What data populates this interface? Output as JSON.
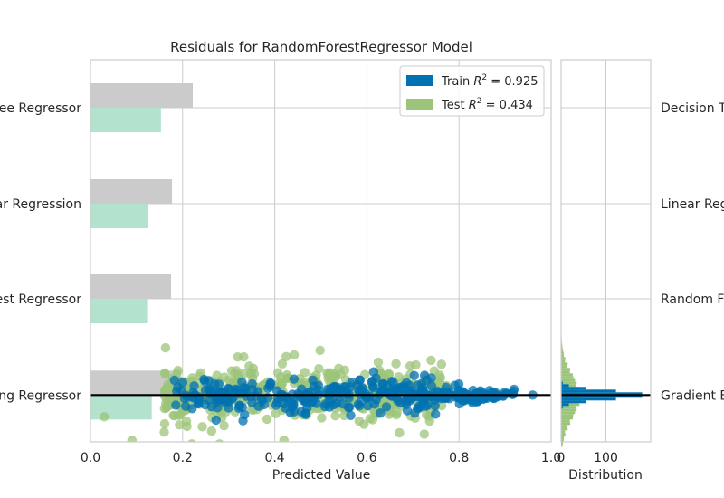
{
  "chart_data": {
    "type": "scatter",
    "title": "Residuals for RandomForestRegressor Model",
    "xlabel": "Predicted Value",
    "ylabel": "",
    "xlim": [
      0.0,
      1.0
    ],
    "x_ticks": [
      "0.0",
      "0.2",
      "0.4",
      "0.6",
      "0.8",
      "1.0"
    ],
    "grid": true,
    "legend_position": "top-right",
    "legend": [
      {
        "key": "train",
        "prefix": "Train ",
        "r2_label": "R",
        "r2_sup": "2",
        "value_text": " = 0.925",
        "color": "#0072b2"
      },
      {
        "key": "test",
        "prefix": "Test ",
        "r2_label": "R",
        "r2_sup": "2",
        "value_text": " = 0.434",
        "color": "#9cc47a"
      }
    ],
    "bar_overlay": {
      "type": "bar",
      "orientation": "horizontal",
      "categories": [
        "Decision Tree Regressor",
        "Linear Regression",
        "Random Forest Regressor",
        "Gradient Boosting Regressor"
      ],
      "left_labels_visible": [
        "Tree Regressor",
        "ear Regression",
        "rest Regressor",
        "ting Regressor"
      ],
      "right_labels_visible": [
        "Decision Tr",
        "Linear Regr",
        "Random Fo",
        "Gradient Bo"
      ],
      "series": [
        {
          "name": "grey",
          "color": "#cbcbcb",
          "values": [
            0.222,
            0.177,
            0.175,
            0.195
          ]
        },
        {
          "name": "mint",
          "color": "#b3e3cf",
          "values": [
            0.153,
            0.125,
            0.123,
            0.133
          ]
        }
      ]
    },
    "histogram": {
      "xlabel": "Distribution",
      "x_ticks": [
        "0",
        "100"
      ],
      "xlim": [
        0,
        200
      ],
      "peak_train": 190,
      "peak_test": 45
    },
    "train_color": "#0072b2",
    "test_color": "#9cc47a"
  }
}
